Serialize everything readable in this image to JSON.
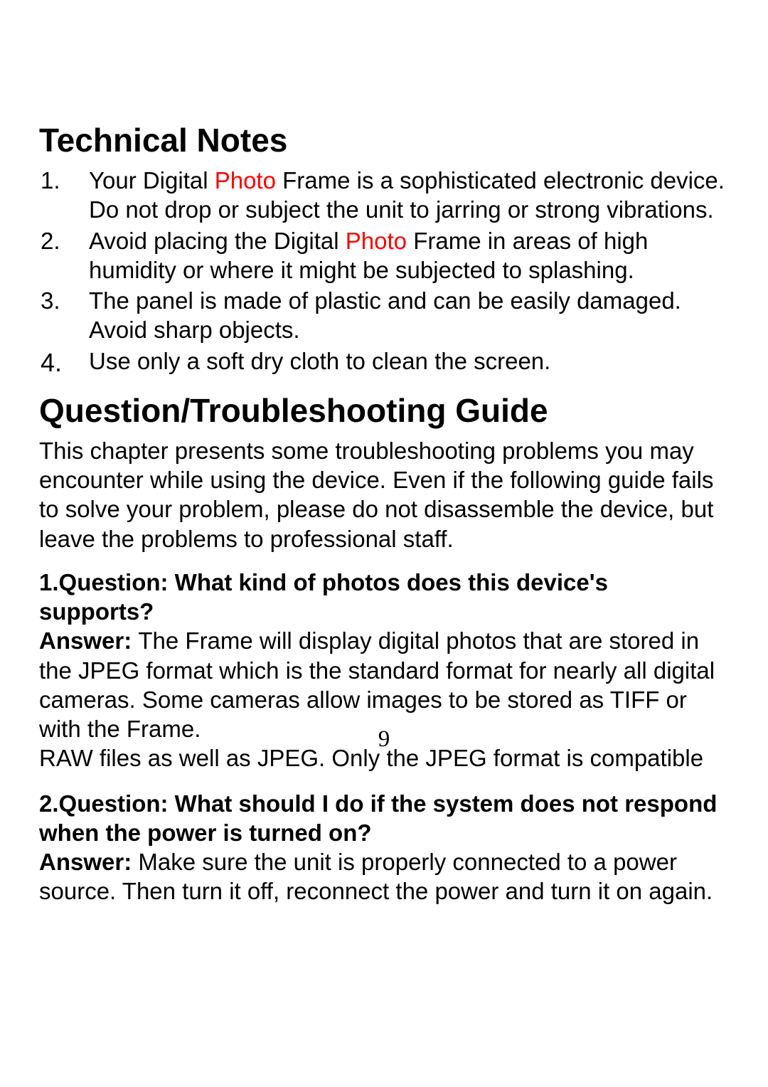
{
  "heading1": "Technical Notes",
  "notes": [
    {
      "num": "1.",
      "pre": "Your Digital ",
      "red": "Photo",
      "post": " Frame is a sophisticated electronic device. Do not drop or subject the unit to jarring or strong vibrations."
    },
    {
      "num": "2.",
      "pre": "Avoid placing the Digital ",
      "red": "Photo",
      "post": " Frame in areas of high humidity or where it might be subjected to splashing."
    },
    {
      "num": "3.",
      "pre": "The panel is made of plastic and can be easily damaged. Avoid sharp objects.",
      "red": "",
      "post": ""
    },
    {
      "num": "4.",
      "pre": "Use only a soft dry cloth to clean the screen.",
      "red": "",
      "post": ""
    }
  ],
  "heading2": "Question/Troubleshooting Guide",
  "intro": "This chapter presents some troubleshooting problems you may encounter while using the device. Even if the following guide fails to solve your problem, please do not disassemble the device, but leave the problems to professional staff.",
  "q1_q": "1.Question: What kind of photos does this device's supports?",
  "q1_a_label": "Answer: ",
  "q1_a_body": "The Frame will display digital photos that are stored in the JPEG format which is the standard format for nearly all digital cameras. Some cameras allow images to be stored as TIFF or with the Frame.",
  "q1_a_extra": "RAW files as well as JPEG. Only the JPEG format is compatible",
  "q2_q": "2.Question: What should I do if the system does not respond when the power is turned on?",
  "q2_a_label": "Answer: ",
  "q2_a_body": "Make sure the unit is properly connected to a power source. Then turn it off, reconnect the power and turn it on again.",
  "page_number": "9",
  "colors": {
    "text": "#000000",
    "highlight": "#ff0000",
    "background": "#ffffff"
  }
}
